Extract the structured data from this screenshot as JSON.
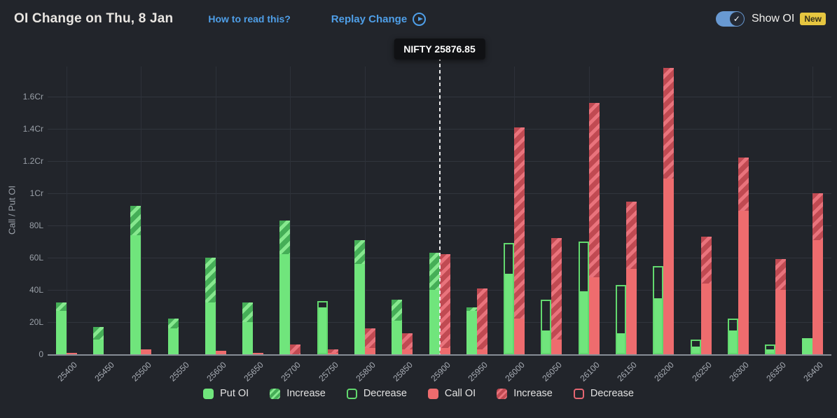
{
  "header": {
    "title": "OI Change on Thu, 8 Jan",
    "how_to_read_label": "How to read this?",
    "replay_label": "Replay Change",
    "show_oi_label": "Show OI",
    "new_badge": "New",
    "toggle_state": "on",
    "accent_blue": "#4f9fe8",
    "badge_bg": "#e6c640"
  },
  "legend": {
    "items": [
      {
        "label": "Put OI",
        "style": "put"
      },
      {
        "label": "Increase",
        "style": "put-inc"
      },
      {
        "label": "Decrease",
        "style": "put-dec"
      },
      {
        "label": "Call OI",
        "style": "call"
      },
      {
        "label": "Increase",
        "style": "call-inc"
      },
      {
        "label": "Decrease",
        "style": "call-dec"
      }
    ]
  },
  "chart_data": {
    "type": "bar",
    "title": "OI Change on Thu, 8 Jan",
    "ylabel": "Call / Put OI",
    "values_unit": "lakh (1Cr = 100L)",
    "ylim": [
      0,
      179
    ],
    "y_ticks": [
      {
        "value": 0,
        "label": "0"
      },
      {
        "value": 20,
        "label": "20L"
      },
      {
        "value": 40,
        "label": "40L"
      },
      {
        "value": 60,
        "label": "60L"
      },
      {
        "value": 80,
        "label": "80L"
      },
      {
        "value": 100,
        "label": "1Cr"
      },
      {
        "value": 120,
        "label": "1.2Cr"
      },
      {
        "value": 140,
        "label": "1.4Cr"
      },
      {
        "value": 160,
        "label": "1.6Cr"
      }
    ],
    "grid": true,
    "legend_position": "bottom",
    "colors": {
      "put_oi": "#70e57c",
      "put_increase_hatch": "#45ae57",
      "put_decrease_outline": "#62d86e",
      "call_oi": "#ee6c6e",
      "call_increase_hatch": "#c04a52",
      "call_decrease_outline": "#e56672",
      "background": "#22252b"
    },
    "spot": {
      "label": "NIFTY 25876.85",
      "value": 25876.85,
      "line_at_strike": "25900"
    },
    "categories": [
      "25400",
      "25450",
      "25500",
      "25550",
      "25600",
      "25650",
      "25700",
      "25750",
      "25800",
      "25850",
      "25900",
      "25950",
      "26000",
      "26050",
      "26100",
      "26150",
      "26200",
      "26250",
      "26300",
      "26350",
      "26400"
    ],
    "bars": [
      {
        "strike": "25400",
        "put": {
          "total": 32,
          "change": "increase",
          "change_amt": 5
        },
        "call": {
          "total": 1,
          "change": "none",
          "change_amt": 0
        }
      },
      {
        "strike": "25450",
        "put": {
          "total": 17,
          "change": "increase",
          "change_amt": 8
        },
        "call": {
          "total": 0,
          "change": "none",
          "change_amt": 0
        }
      },
      {
        "strike": "25500",
        "put": {
          "total": 92,
          "change": "increase",
          "change_amt": 18
        },
        "call": {
          "total": 3,
          "change": "none",
          "change_amt": 0
        }
      },
      {
        "strike": "25550",
        "put": {
          "total": 22,
          "change": "increase",
          "change_amt": 6
        },
        "call": {
          "total": 0,
          "change": "none",
          "change_amt": 0
        }
      },
      {
        "strike": "25600",
        "put": {
          "total": 60,
          "change": "increase",
          "change_amt": 28
        },
        "call": {
          "total": 2,
          "change": "none",
          "change_amt": 0
        }
      },
      {
        "strike": "25650",
        "put": {
          "total": 32,
          "change": "increase",
          "change_amt": 12
        },
        "call": {
          "total": 1,
          "change": "none",
          "change_amt": 0
        }
      },
      {
        "strike": "25700",
        "put": {
          "total": 83,
          "change": "increase",
          "change_amt": 21
        },
        "call": {
          "total": 6,
          "change": "increase",
          "change_amt": 6
        }
      },
      {
        "strike": "25750",
        "put": {
          "total": 33,
          "change": "decrease",
          "change_amt": 4
        },
        "call": {
          "total": 3,
          "change": "increase",
          "change_amt": 2
        }
      },
      {
        "strike": "25800",
        "put": {
          "total": 71,
          "change": "increase",
          "change_amt": 15
        },
        "call": {
          "total": 16,
          "change": "increase",
          "change_amt": 12
        }
      },
      {
        "strike": "25850",
        "put": {
          "total": 34,
          "change": "increase",
          "change_amt": 13
        },
        "call": {
          "total": 13,
          "change": "increase",
          "change_amt": 10
        }
      },
      {
        "strike": "25900",
        "put": {
          "total": 63,
          "change": "increase",
          "change_amt": 23
        },
        "call": {
          "total": 62,
          "change": "increase",
          "change_amt": 58
        }
      },
      {
        "strike": "25950",
        "put": {
          "total": 29,
          "change": "increase",
          "change_amt": 2
        },
        "call": {
          "total": 41,
          "change": "increase",
          "change_amt": 38
        }
      },
      {
        "strike": "26000",
        "put": {
          "total": 69,
          "change": "decrease",
          "change_amt": 19
        },
        "call": {
          "total": 141,
          "change": "increase",
          "change_amt": 119
        }
      },
      {
        "strike": "26050",
        "put": {
          "total": 34,
          "change": "decrease",
          "change_amt": 19
        },
        "call": {
          "total": 72,
          "change": "increase",
          "change_amt": 63
        }
      },
      {
        "strike": "26100",
        "put": {
          "total": 70,
          "change": "decrease",
          "change_amt": 31
        },
        "call": {
          "total": 156,
          "change": "increase",
          "change_amt": 108
        }
      },
      {
        "strike": "26150",
        "put": {
          "total": 43,
          "change": "decrease",
          "change_amt": 30
        },
        "call": {
          "total": 95,
          "change": "increase",
          "change_amt": 42
        }
      },
      {
        "strike": "26200",
        "put": {
          "total": 55,
          "change": "decrease",
          "change_amt": 20
        },
        "call": {
          "total": 178,
          "change": "increase",
          "change_amt": 69
        }
      },
      {
        "strike": "26250",
        "put": {
          "total": 9,
          "change": "decrease",
          "change_amt": 4
        },
        "call": {
          "total": 73,
          "change": "increase",
          "change_amt": 29
        }
      },
      {
        "strike": "26300",
        "put": {
          "total": 22,
          "change": "decrease",
          "change_amt": 7
        },
        "call": {
          "total": 122,
          "change": "increase",
          "change_amt": 33
        }
      },
      {
        "strike": "26350",
        "put": {
          "total": 6,
          "change": "decrease",
          "change_amt": 3
        },
        "call": {
          "total": 59,
          "change": "increase",
          "change_amt": 19
        }
      },
      {
        "strike": "26400",
        "put": {
          "total": 10,
          "change": "none",
          "change_amt": 0
        },
        "call": {
          "total": 100,
          "change": "increase",
          "change_amt": 29
        }
      }
    ]
  }
}
